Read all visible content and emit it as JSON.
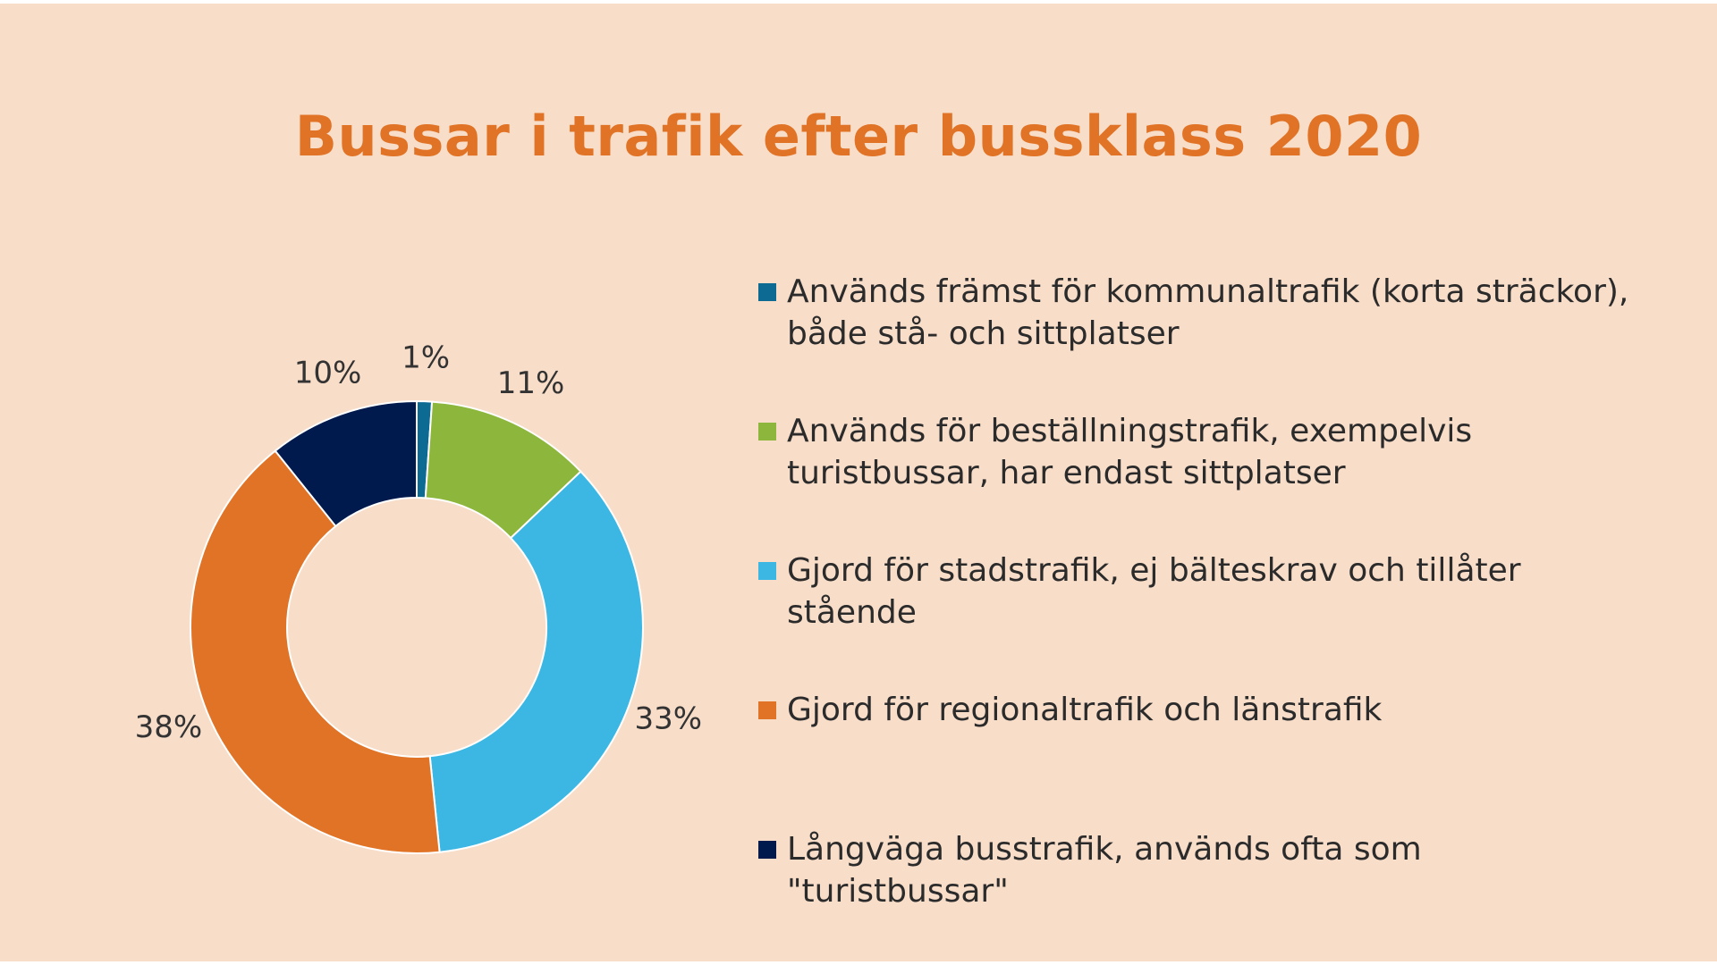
{
  "chart_data": {
    "type": "pie",
    "title": "Bussar i trafik efter bussklass 2020",
    "donut": true,
    "legend_position": "right",
    "slices": [
      {
        "label": "Används främst för kommunaltrafik (korta sträckor), både stå- och sittplatser",
        "value": 1,
        "value_label": "1%",
        "color": "#0d6a93"
      },
      {
        "label": "Används för beställningstrafik, exempelvis turistbussar, har endast sittplatser",
        "value": 11,
        "value_label": "11%",
        "color": "#8db63c"
      },
      {
        "label": "Gjord för stadstrafik, ej bälteskrav och tillåter stående",
        "value": 33,
        "value_label": "33%",
        "color": "#3cb7e4"
      },
      {
        "label": "Gjord för regionaltrafik och länstrafik",
        "value": 38,
        "value_label": "38%",
        "color": "#e07325"
      },
      {
        "label": "Långväga busstrafik, används ofta som \"turistbussar\"",
        "value": 10,
        "value_label": "10%",
        "color": "#001a4d"
      }
    ]
  }
}
